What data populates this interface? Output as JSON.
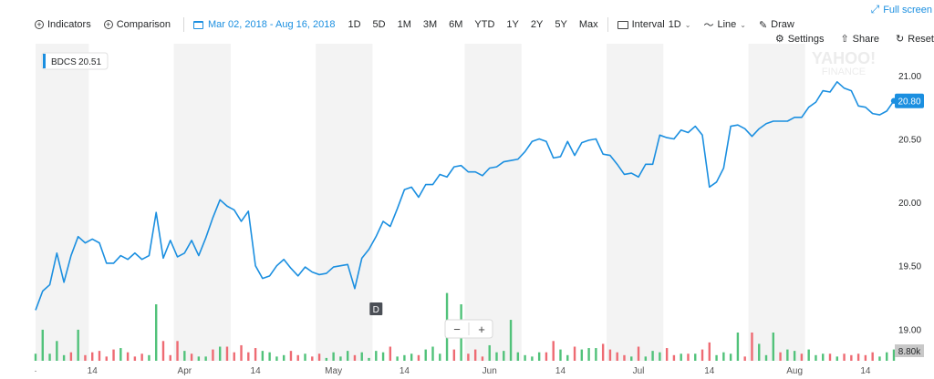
{
  "header": {
    "fullscreen_label": "Full screen",
    "indicators_label": "Indicators",
    "comparison_label": "Comparison",
    "date_range": "Mar 02, 2018 - Aug 16, 2018",
    "ranges": [
      "1D",
      "5D",
      "1M",
      "3M",
      "6M",
      "YTD",
      "1Y",
      "2Y",
      "5Y",
      "Max"
    ],
    "interval_label": "Interval",
    "interval_value": "1D",
    "line_label": "Line",
    "draw_label": "Draw",
    "settings_label": "Settings",
    "share_label": "Share",
    "reset_label": "Reset"
  },
  "colors": {
    "line": "#1b8fe0",
    "volume_up": "#51c27a",
    "volume_down": "#ee6b73",
    "band": "#f3f3f3"
  },
  "legend": {
    "symbol": "BDCS",
    "value": "20.51"
  },
  "watermark": {
    "line1": "YAHOO!",
    "line2": "FINANCE"
  },
  "zoom": {
    "minus": "−",
    "plus": "+"
  },
  "markers": [
    {
      "label": "D",
      "index": 48
    },
    {
      "label": "D",
      "index": 149
    }
  ],
  "current_price_tag": "20.80",
  "volume_tag": "8.80k",
  "x_tick_labels": [
    {
      "label": "·",
      "index": 0
    },
    {
      "label": "14",
      "index": 8
    },
    {
      "label": "Apr",
      "index": 21
    },
    {
      "label": "14",
      "index": 31
    },
    {
      "label": "May",
      "index": 42
    },
    {
      "label": "14",
      "index": 52
    },
    {
      "label": "Jun",
      "index": 64
    },
    {
      "label": "14",
      "index": 74
    },
    {
      "label": "Jul",
      "index": 85
    },
    {
      "label": "14",
      "index": 95
    },
    {
      "label": "Aug",
      "index": 107
    },
    {
      "label": "14",
      "index": 117
    }
  ],
  "chart_data": {
    "type": "line",
    "title": "",
    "xlabel": "",
    "ylabel": "",
    "ylim": [
      18.88,
      21.15
    ],
    "y_ticks": [
      19.0,
      19.5,
      20.0,
      20.5,
      21.0
    ],
    "shaded_band_index_ranges": [
      [
        0,
        8
      ],
      [
        20,
        28
      ],
      [
        40,
        48
      ],
      [
        61,
        69
      ],
      [
        81,
        89
      ],
      [
        101,
        109
      ]
    ],
    "series": [
      {
        "name": "BDCS",
        "values": [
          19.15,
          19.3,
          19.35,
          19.6,
          19.37,
          19.58,
          19.73,
          19.68,
          19.71,
          19.68,
          19.52,
          19.52,
          19.58,
          19.55,
          19.6,
          19.55,
          19.58,
          19.92,
          19.56,
          19.7,
          19.57,
          19.6,
          19.7,
          19.58,
          19.72,
          19.88,
          20.02,
          19.97,
          19.94,
          19.85,
          19.93,
          19.5,
          19.4,
          19.42,
          19.5,
          19.55,
          19.48,
          19.42,
          19.49,
          19.45,
          19.43,
          19.44,
          19.49,
          19.5,
          19.51,
          19.32,
          19.56,
          19.63,
          19.73,
          19.85,
          19.81,
          19.95,
          20.1,
          20.12,
          20.04,
          20.14,
          20.14,
          20.22,
          20.2,
          20.28,
          20.29,
          20.24,
          20.24,
          20.21,
          20.27,
          20.28,
          20.32,
          20.33,
          20.34,
          20.4,
          20.48,
          20.5,
          20.48,
          20.35,
          20.36,
          20.48,
          20.37,
          20.47,
          20.49,
          20.5,
          20.38,
          20.37,
          20.3,
          20.22,
          20.23,
          20.2,
          20.3,
          20.3,
          20.53,
          20.51,
          20.5,
          20.57,
          20.55,
          20.6,
          20.53,
          20.12,
          20.16,
          20.27,
          20.6,
          20.61,
          20.58,
          20.52,
          20.58,
          20.62,
          20.64,
          20.64,
          20.64,
          20.67,
          20.67,
          20.75,
          20.79,
          20.88,
          20.87,
          20.95,
          20.9,
          20.88,
          20.76,
          20.75,
          20.7,
          20.69,
          20.72,
          20.8
        ]
      },
      {
        "name": "Volume",
        "values": [
          5,
          22,
          5,
          14,
          4,
          6,
          22,
          4,
          6,
          7,
          3,
          8,
          9,
          6,
          3,
          5,
          4,
          40,
          14,
          4,
          14,
          7,
          5,
          3,
          3,
          8,
          10,
          10,
          6,
          11,
          6,
          9,
          7,
          6,
          3,
          4,
          7,
          4,
          5,
          3,
          5,
          2,
          6,
          3,
          7,
          4,
          6,
          2,
          7,
          6,
          10,
          3,
          4,
          5,
          4,
          8,
          10,
          5,
          48,
          8,
          40,
          5,
          8,
          3,
          11,
          6,
          7,
          29,
          6,
          4,
          3,
          6,
          6,
          14,
          8,
          4,
          10,
          8,
          9,
          9,
          12,
          8,
          6,
          4,
          3,
          10,
          3,
          7,
          6,
          9,
          4,
          5,
          5,
          5,
          8,
          13,
          4,
          6,
          5,
          20,
          3,
          20,
          12,
          4,
          20,
          6,
          8,
          7,
          5,
          8,
          4,
          5,
          5,
          3,
          5,
          4,
          5,
          4,
          6,
          3,
          6,
          8
        ]
      }
    ],
    "volume_direction": [
      "u",
      "u",
      "u",
      "u",
      "u",
      "d",
      "u",
      "d",
      "d",
      "d",
      "d",
      "d",
      "u",
      "d",
      "d",
      "d",
      "u",
      "u",
      "d",
      "d",
      "d",
      "u",
      "d",
      "u",
      "u",
      "d",
      "u",
      "d",
      "d",
      "d",
      "d",
      "d",
      "u",
      "u",
      "u",
      "u",
      "d",
      "d",
      "u",
      "d",
      "d",
      "u",
      "u",
      "u",
      "u",
      "d",
      "u",
      "u",
      "u",
      "u",
      "d",
      "u",
      "u",
      "u",
      "d",
      "u",
      "u",
      "u",
      "u",
      "d",
      "u",
      "d",
      "d",
      "d",
      "u",
      "u",
      "u",
      "u",
      "u",
      "u",
      "u",
      "u",
      "d",
      "d",
      "u",
      "u",
      "d",
      "u",
      "u",
      "u",
      "d",
      "d",
      "d",
      "d",
      "u",
      "d",
      "u",
      "u",
      "u",
      "d",
      "d",
      "u",
      "d",
      "u",
      "d",
      "d",
      "u",
      "u",
      "u",
      "u",
      "d",
      "d",
      "u",
      "u",
      "u",
      "d",
      "u",
      "u",
      "d",
      "u",
      "u",
      "u",
      "d",
      "u",
      "d",
      "d",
      "d",
      "d",
      "d",
      "u",
      "u",
      "u"
    ]
  }
}
